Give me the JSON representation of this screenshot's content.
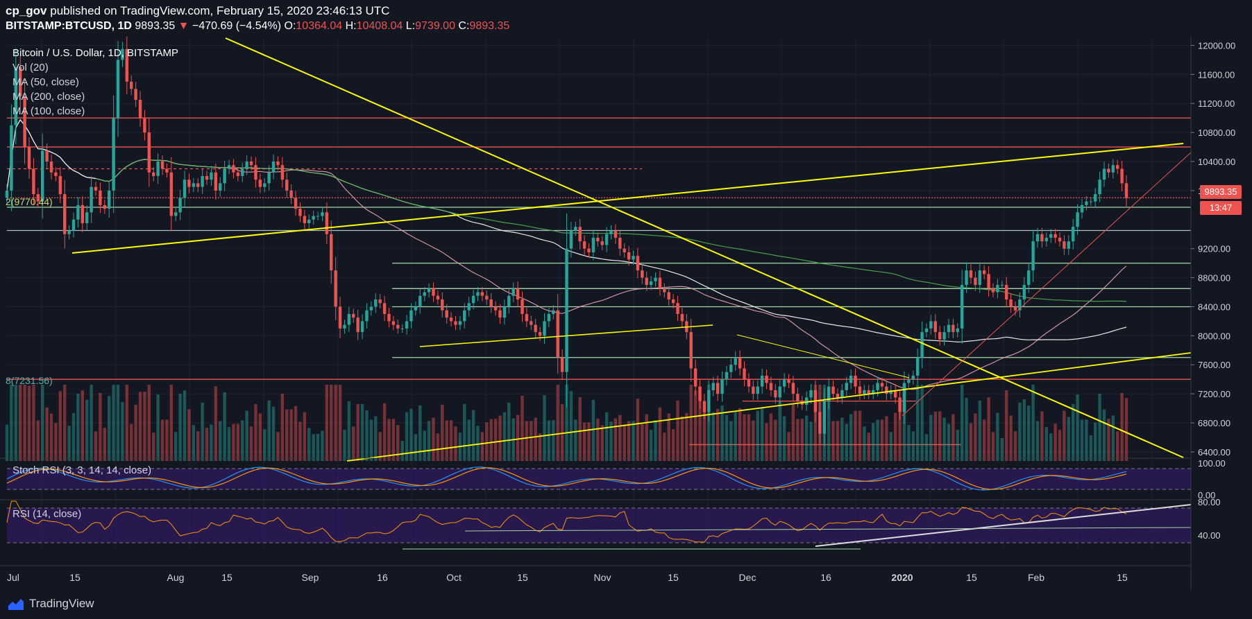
{
  "header": {
    "user": "cp_gov",
    "published": " published on TradingView.com, February 15, 2020 23:46:13 UTC",
    "symbol": "BITSTAMP:BTCUSD, 1D",
    "last": "9893.35",
    "change": "−470.69 (−4.54%)",
    "o_label": "O:",
    "o": "10364.04",
    "h_label": "H:",
    "h": "10408.04",
    "l_label": "L:",
    "l": "9739.00",
    "c_label": "C:",
    "c": "9893.35"
  },
  "legend": {
    "title": "Bitcoin / U.S. Dollar, 1D, BITSTAMP",
    "vol": "Vol (20)",
    "ma50": "MA (50, close)",
    "ma200": "MA (200, close)",
    "ma100": "MA (100, close)"
  },
  "indicators": {
    "stoch": "Stoch RSI (3, 3, 14, 14, close)",
    "rsi": "RSI (14, close)"
  },
  "fib": {
    "upper": "2(9770.44)",
    "lower": "8(7231.56)"
  },
  "price_tags": {
    "last": "9893.35",
    "countdown": "13:47"
  },
  "footer": {
    "brand": "TradingView"
  },
  "colors": {
    "background": "#131722",
    "up": "#26a69a",
    "down": "#ef5350",
    "trendline": "#ffff00",
    "ma50": "#e9a0b0",
    "ma100": "#ffffff",
    "ma200": "#4caf50",
    "support": "#a5d6a7",
    "resistance": "#ef5350",
    "rsi": "#ff9800",
    "stoch_k": "#2196f3",
    "stoch_d": "#ff9800"
  },
  "chart_data": {
    "type": "candlestick",
    "y_ticks": [
      "12000.00",
      "11600.00",
      "11200.00",
      "10800.00",
      "10400.00",
      "10000.00",
      "9200.00",
      "8800.00",
      "8400.00",
      "8000.00",
      "7600.00",
      "7200.00",
      "6800.00",
      "6400.00"
    ],
    "ylim": [
      6200,
      12200
    ],
    "x_ticks": [
      "Jul",
      "15",
      "Aug",
      "15",
      "Sep",
      "16",
      "Oct",
      "15",
      "Nov",
      "15",
      "Dec",
      "16",
      "2020",
      "15",
      "Feb",
      "15"
    ],
    "stoch_ticks": [
      "100.00",
      "0.00"
    ],
    "rsi_ticks": [
      "80.00",
      "40.00"
    ],
    "closes": [
      10000,
      10900,
      11700,
      11300,
      10600,
      10300,
      9950,
      9850,
      10550,
      10400,
      10250,
      10200,
      9950,
      9400,
      9450,
      9600,
      9800,
      9550,
      9700,
      10050,
      10000,
      9800,
      9750,
      10000,
      11000,
      11800,
      11950,
      11500,
      11400,
      11250,
      11000,
      10800,
      10250,
      10200,
      10400,
      10300,
      10250,
      9650,
      9700,
      9900,
      10150,
      10050,
      10100,
      10050,
      10200,
      10150,
      10250,
      10000,
      10100,
      10300,
      10350,
      10250,
      10200,
      10300,
      10400,
      10350,
      10150,
      10050,
      10100,
      10250,
      10400,
      10350,
      10150,
      10000,
      9900,
      9750,
      9650,
      9550,
      9600,
      9650,
      9650,
      9700,
      9400,
      8900,
      8400,
      8100,
      8150,
      8300,
      8250,
      8050,
      8200,
      8350,
      8400,
      8500,
      8450,
      8300,
      8200,
      8150,
      8100,
      8100,
      8200,
      8350,
      8400,
      8550,
      8600,
      8650,
      8550,
      8500,
      8350,
      8250,
      8200,
      8150,
      8200,
      8350,
      8450,
      8550,
      8600,
      8550,
      8500,
      8400,
      8350,
      8250,
      8400,
      8550,
      8650,
      8500,
      8300,
      8200,
      8150,
      8050,
      8000,
      8200,
      8300,
      8350,
      7700,
      7500,
      9200,
      9450,
      9500,
      9300,
      9200,
      9150,
      9350,
      9300,
      9250,
      9400,
      9450,
      9350,
      9200,
      9150,
      9050,
      9100,
      8900,
      8800,
      8700,
      8750,
      8800,
      8650,
      8600,
      8500,
      8450,
      8300,
      8200,
      8050,
      7550,
      7300,
      7100,
      6950,
      7250,
      7350,
      7200,
      7400,
      7500,
      7600,
      7700,
      7550,
      7400,
      7300,
      7200,
      7300,
      7450,
      7350,
      7250,
      7150,
      7300,
      7400,
      7350,
      7200,
      7100,
      7050,
      7150,
      7250,
      6950,
      6650,
      7100,
      7300,
      7200,
      7150,
      7250,
      7350,
      7450,
      7300,
      7200,
      7250,
      7200,
      7250,
      7350,
      7300,
      7200,
      7250,
      7150,
      6950,
      7350,
      7400,
      7450,
      7700,
      8050,
      8100,
      8200,
      8050,
      7950,
      8050,
      8150,
      8050,
      8100,
      8700,
      8900,
      8800,
      8700,
      8900,
      8850,
      8650,
      8600,
      8700,
      8700,
      8500,
      8400,
      8350,
      8500,
      8700,
      8900,
      9300,
      9400,
      9300,
      9350,
      9400,
      9350,
      9300,
      9200,
      9300,
      9500,
      9700,
      9800,
      9850,
      9850,
      9950,
      10150,
      10300,
      10250,
      10350,
      10300,
      10100,
      9893.35
    ]
  }
}
